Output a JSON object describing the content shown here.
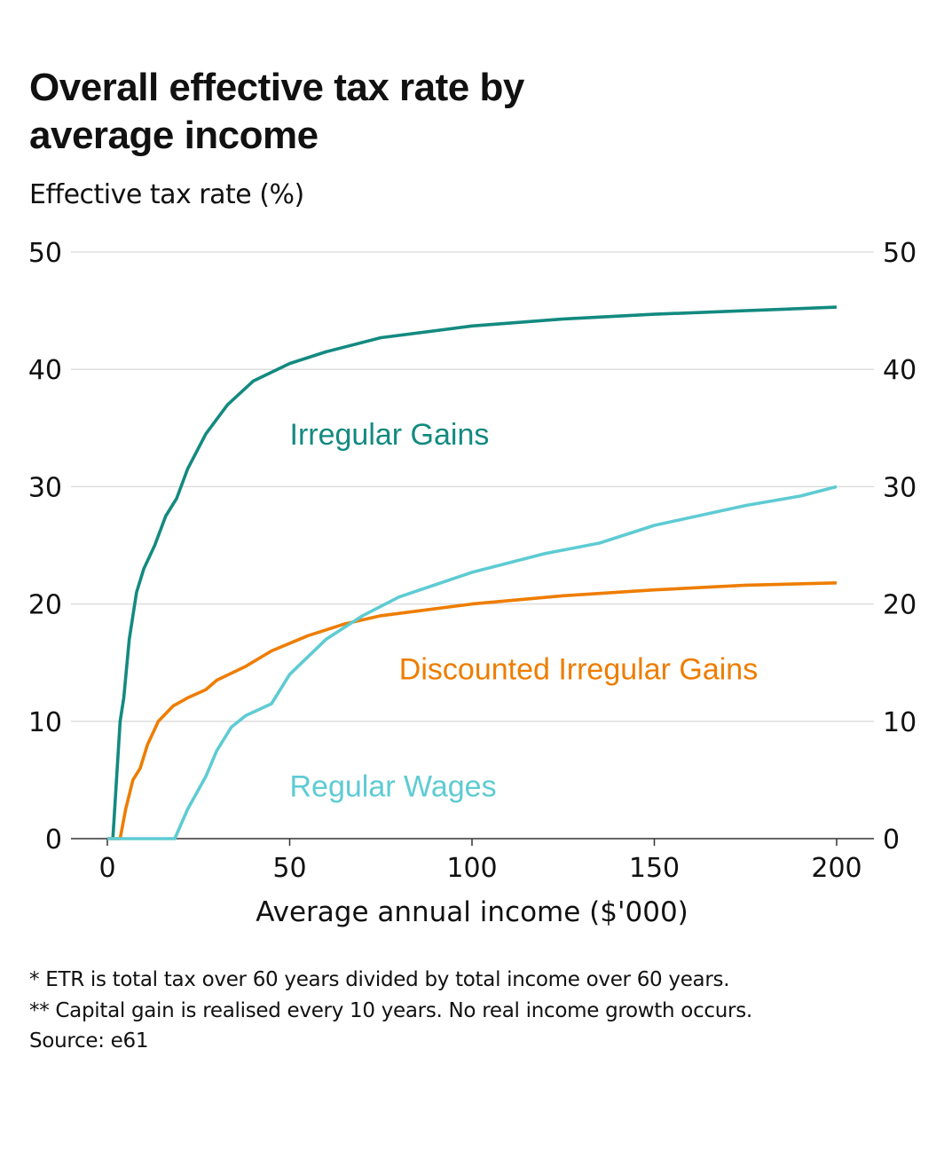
{
  "title": "Overall effective tax rate by average income",
  "subtitle": "Effective tax rate (%)",
  "notes": [
    "* ETR is total tax over 60 years divided by total income over 60 years.",
    "** Capital gain is realised every 10 years. No real income growth occurs.",
    "Source: e61"
  ],
  "chart_data": {
    "type": "line",
    "title": "Overall effective tax rate by average income",
    "subtitle": "Effective tax rate (%)",
    "xlabel": "Average annual income ($'000)",
    "ylabel": "Effective tax rate (%)",
    "xlim": [
      -10,
      210
    ],
    "ylim": [
      0,
      50
    ],
    "xticks": [
      0,
      50,
      100,
      150,
      200
    ],
    "xtick_labels": [
      "0",
      "50",
      "100",
      "150",
      "200"
    ],
    "yticks": [
      0,
      10,
      20,
      30,
      40,
      50
    ],
    "ytick_labels": [
      "0",
      "10",
      "20",
      "30",
      "40",
      "50"
    ],
    "y_axis_both_sides": true,
    "grid": "horizontal",
    "legend": "inline-labels",
    "series": [
      {
        "name": "Irregular Gains",
        "color": "#138a80",
        "label_position": "upper-middle",
        "points": [
          [
            1.5,
            0
          ],
          [
            3.5,
            10
          ],
          [
            4.5,
            12
          ],
          [
            6,
            17
          ],
          [
            8,
            21
          ],
          [
            10,
            23
          ],
          [
            13,
            25
          ],
          [
            16,
            27.5
          ],
          [
            19,
            29
          ],
          [
            22,
            31.5
          ],
          [
            27,
            34.5
          ],
          [
            33,
            37
          ],
          [
            40,
            39
          ],
          [
            50,
            40.5
          ],
          [
            60,
            41.5
          ],
          [
            75,
            42.7
          ],
          [
            100,
            43.7
          ],
          [
            125,
            44.3
          ],
          [
            150,
            44.7
          ],
          [
            175,
            45
          ],
          [
            200,
            45.3
          ]
        ]
      },
      {
        "name": "Discounted Irregular Gains",
        "color": "#ee7d00",
        "label_position": "middle-right",
        "points": [
          [
            0,
            0
          ],
          [
            3.5,
            0
          ],
          [
            5,
            2.5
          ],
          [
            7,
            5
          ],
          [
            9,
            6
          ],
          [
            11,
            8
          ],
          [
            14,
            10
          ],
          [
            18,
            11.3
          ],
          [
            22,
            12
          ],
          [
            27,
            12.7
          ],
          [
            30,
            13.5
          ],
          [
            38,
            14.7
          ],
          [
            45,
            16
          ],
          [
            55,
            17.3
          ],
          [
            65,
            18.3
          ],
          [
            75,
            19
          ],
          [
            100,
            20
          ],
          [
            125,
            20.7
          ],
          [
            150,
            21.2
          ],
          [
            175,
            21.6
          ],
          [
            200,
            21.8
          ]
        ]
      },
      {
        "name": "Regular Wages",
        "color": "#5ecbd3",
        "label_position": "lower-middle",
        "points": [
          [
            0,
            0
          ],
          [
            18.5,
            0
          ],
          [
            22,
            2.5
          ],
          [
            27,
            5.3
          ],
          [
            30,
            7.5
          ],
          [
            34,
            9.5
          ],
          [
            38,
            10.5
          ],
          [
            45,
            11.5
          ],
          [
            50,
            14
          ],
          [
            60,
            17
          ],
          [
            70,
            19
          ],
          [
            80,
            20.6
          ],
          [
            100,
            22.7
          ],
          [
            120,
            24.3
          ],
          [
            135,
            25.2
          ],
          [
            150,
            26.7
          ],
          [
            175,
            28.4
          ],
          [
            190,
            29.2
          ],
          [
            200,
            30
          ]
        ]
      }
    ],
    "annotations": [
      {
        "text": "Irregular Gains",
        "x": 50,
        "y": 34.5,
        "color": "#138a80"
      },
      {
        "text": "Discounted Irregular Gains",
        "x": 80,
        "y": 14.5,
        "color": "#ee7d00"
      },
      {
        "text": "Regular Wages",
        "x": 50,
        "y": 4.5,
        "color": "#5ecbd3"
      }
    ]
  }
}
